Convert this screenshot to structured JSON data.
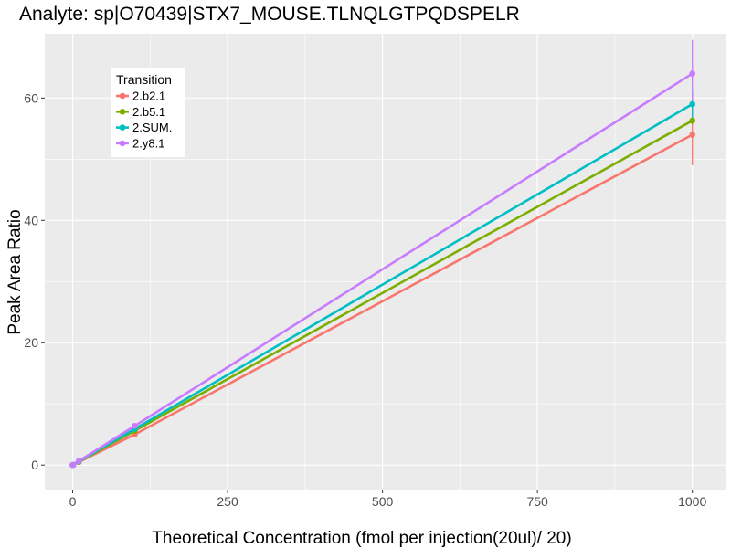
{
  "chart_data": {
    "type": "line",
    "title": "Analyte: sp|O70439|STX7_MOUSE.TLNQLGTPQDSPELR",
    "xlabel": "Theoretical Concentration (fmol per injection(20ul)/ 20)",
    "ylabel": "Peak Area Ratio",
    "xlim": [
      -45,
      1055
    ],
    "ylim": [
      -4,
      70.5
    ],
    "x_ticks": [
      0,
      250,
      500,
      750,
      1000
    ],
    "x_tick_labels": [
      "0",
      "250",
      "500",
      "750",
      "1000"
    ],
    "y_ticks": [
      0,
      20,
      40,
      60
    ],
    "y_tick_labels": [
      "0",
      "20",
      "40",
      "60"
    ],
    "grid": true,
    "legend": {
      "title": "Transition",
      "position": "top-left"
    },
    "x": [
      0,
      1,
      10,
      100,
      1000
    ],
    "series": [
      {
        "name": "2.b2.1",
        "color": "#F8766D",
        "values": [
          0.0,
          0.05,
          0.5,
          5.0,
          54.0
        ],
        "error": [
          null,
          null,
          null,
          0.4,
          5.0
        ]
      },
      {
        "name": "2.b5.1",
        "color": "#7CAE00",
        "values": [
          0.0,
          0.05,
          0.55,
          5.6,
          56.3
        ],
        "error": [
          null,
          null,
          null,
          null,
          null
        ]
      },
      {
        "name": "2.SUM.",
        "color": "#00BFC4",
        "values": [
          0.0,
          0.06,
          0.6,
          5.9,
          59.0
        ],
        "error": [
          null,
          null,
          null,
          null,
          2.2
        ]
      },
      {
        "name": "2.y8.1",
        "color": "#C77CFF",
        "values": [
          0.0,
          0.06,
          0.65,
          6.4,
          64.0
        ],
        "error": [
          null,
          null,
          null,
          null,
          5.5
        ]
      }
    ]
  }
}
